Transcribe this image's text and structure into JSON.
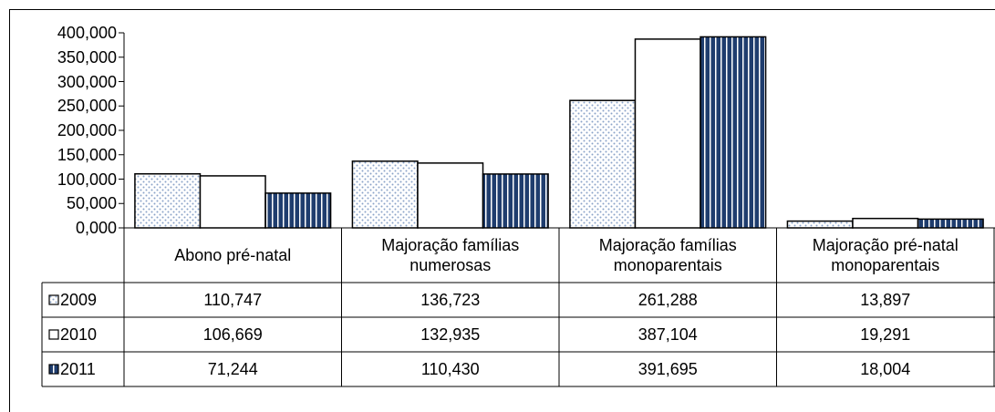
{
  "chart_data": {
    "type": "bar",
    "categories": [
      "Abono pré-natal",
      "Majoração famílias numerosas",
      "Majoração famílias monoparentais",
      "Majoração pré-natal monoparentais"
    ],
    "series": [
      {
        "name": "2009",
        "color": "#c6d4e8",
        "pattern": "dots",
        "values": [
          110.747,
          136.723,
          261.288,
          13.897
        ],
        "value_labels": [
          "110,747",
          "136,723",
          "261,288",
          "13,897"
        ]
      },
      {
        "name": "2010",
        "color": "#ffffff",
        "pattern": "none",
        "values": [
          106.669,
          132.935,
          387.104,
          19.291
        ],
        "value_labels": [
          "106,669",
          "132,935",
          "387,104",
          "19,291"
        ]
      },
      {
        "name": "2011",
        "color": "#1f3d6e",
        "pattern": "stripes",
        "values": [
          71.244,
          110.43,
          391.695,
          18.004
        ],
        "value_labels": [
          "71,244",
          "110,430",
          "391,695",
          "18,004"
        ]
      }
    ],
    "ylim": [
      0,
      400
    ],
    "yticks": [
      {
        "value": 0,
        "label": "0,000"
      },
      {
        "value": 50,
        "label": "50,000"
      },
      {
        "value": 100,
        "label": "100,000"
      },
      {
        "value": 150,
        "label": "150,000"
      },
      {
        "value": 200,
        "label": "200,000"
      },
      {
        "value": 250,
        "label": "250,000"
      },
      {
        "value": 300,
        "label": "300,000"
      },
      {
        "value": 350,
        "label": "350,000"
      },
      {
        "value": 400,
        "label": "400,000"
      }
    ],
    "grid": false,
    "data_table": true
  }
}
